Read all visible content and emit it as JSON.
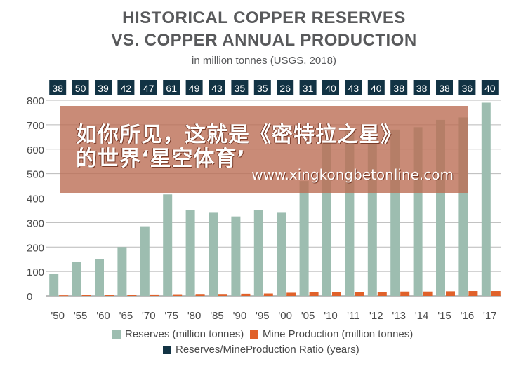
{
  "chart_data": {
    "type": "bar",
    "title": "HISTORICAL COPPER RESERVES",
    "title_line2": "VS. COPPER ANNUAL PRODUCTION",
    "subtitle": "in million tonnes (USGS, 2018)",
    "categories": [
      "'50",
      "'55",
      "'60",
      "'65",
      "'70",
      "'75",
      "'80",
      "'85",
      "'90",
      "'95",
      "'00",
      "'05",
      "'10",
      "'11",
      "'12",
      "'13",
      "'14",
      "'15",
      "'16",
      "'17"
    ],
    "series": [
      {
        "name": "Reserves (million tonnes)",
        "color": "#9dbdb0",
        "values": [
          90,
          140,
          150,
          200,
          285,
          415,
          350,
          340,
          325,
          350,
          340,
          470,
          630,
          690,
          680,
          680,
          690,
          720,
          730,
          790
        ]
      },
      {
        "name": "Mine Production (million tonnes)",
        "color": "#e0612a",
        "values": [
          2.5,
          3,
          4,
          5,
          6,
          7,
          8,
          8,
          9,
          10,
          13,
          15,
          16,
          16,
          17,
          18,
          18,
          19,
          20,
          20
        ]
      }
    ],
    "ratio": {
      "name": "Reserves/MineProduction Ratio (years)",
      "color": "#123344",
      "values": [
        38,
        50,
        39,
        42,
        47,
        61,
        49,
        43,
        35,
        35,
        26,
        31,
        40,
        43,
        40,
        38,
        38,
        38,
        36,
        40
      ]
    },
    "ylim": [
      0,
      800
    ],
    "yticks": [
      0,
      100,
      200,
      300,
      400,
      500,
      600,
      700,
      800
    ],
    "grid": true,
    "legend_position": "bottom"
  },
  "overlay": {
    "line1": "如你所见，这就是《密特拉之星》",
    "line2": "的世界‘星空体育’",
    "url": "www.xingkongbetonline.com"
  }
}
